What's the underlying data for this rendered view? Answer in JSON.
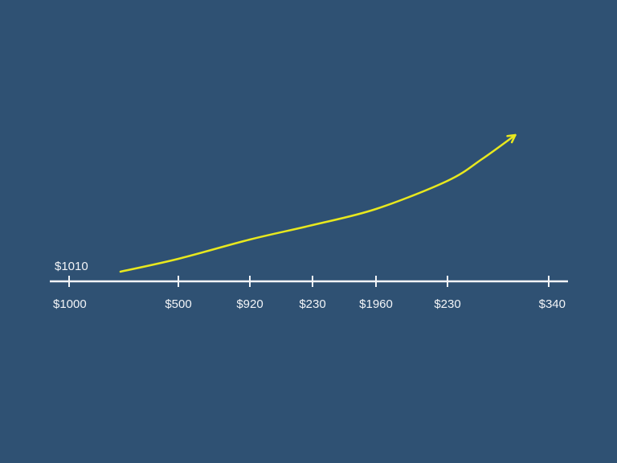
{
  "chart_data": {
    "type": "line",
    "title": "",
    "xlabel": "",
    "ylabel": "",
    "y_label_left": "$1010",
    "categories": [
      "$1000",
      "$500",
      "$920",
      "$230",
      "$1960",
      "$230",
      "$340"
    ],
    "series": [
      {
        "points": [
          [
            0.47,
            12
          ],
          [
            1,
            28
          ],
          [
            2,
            52
          ],
          [
            3,
            70
          ],
          [
            4,
            90
          ],
          [
            5,
            125
          ],
          [
            5.34,
            152
          ],
          [
            5.67,
            182
          ]
        ],
        "end_marker": "arrow"
      }
    ],
    "grid": false,
    "colors": {
      "background": "#2f5173",
      "line": "#e8e81e",
      "axis": "#f2f4f7"
    }
  }
}
